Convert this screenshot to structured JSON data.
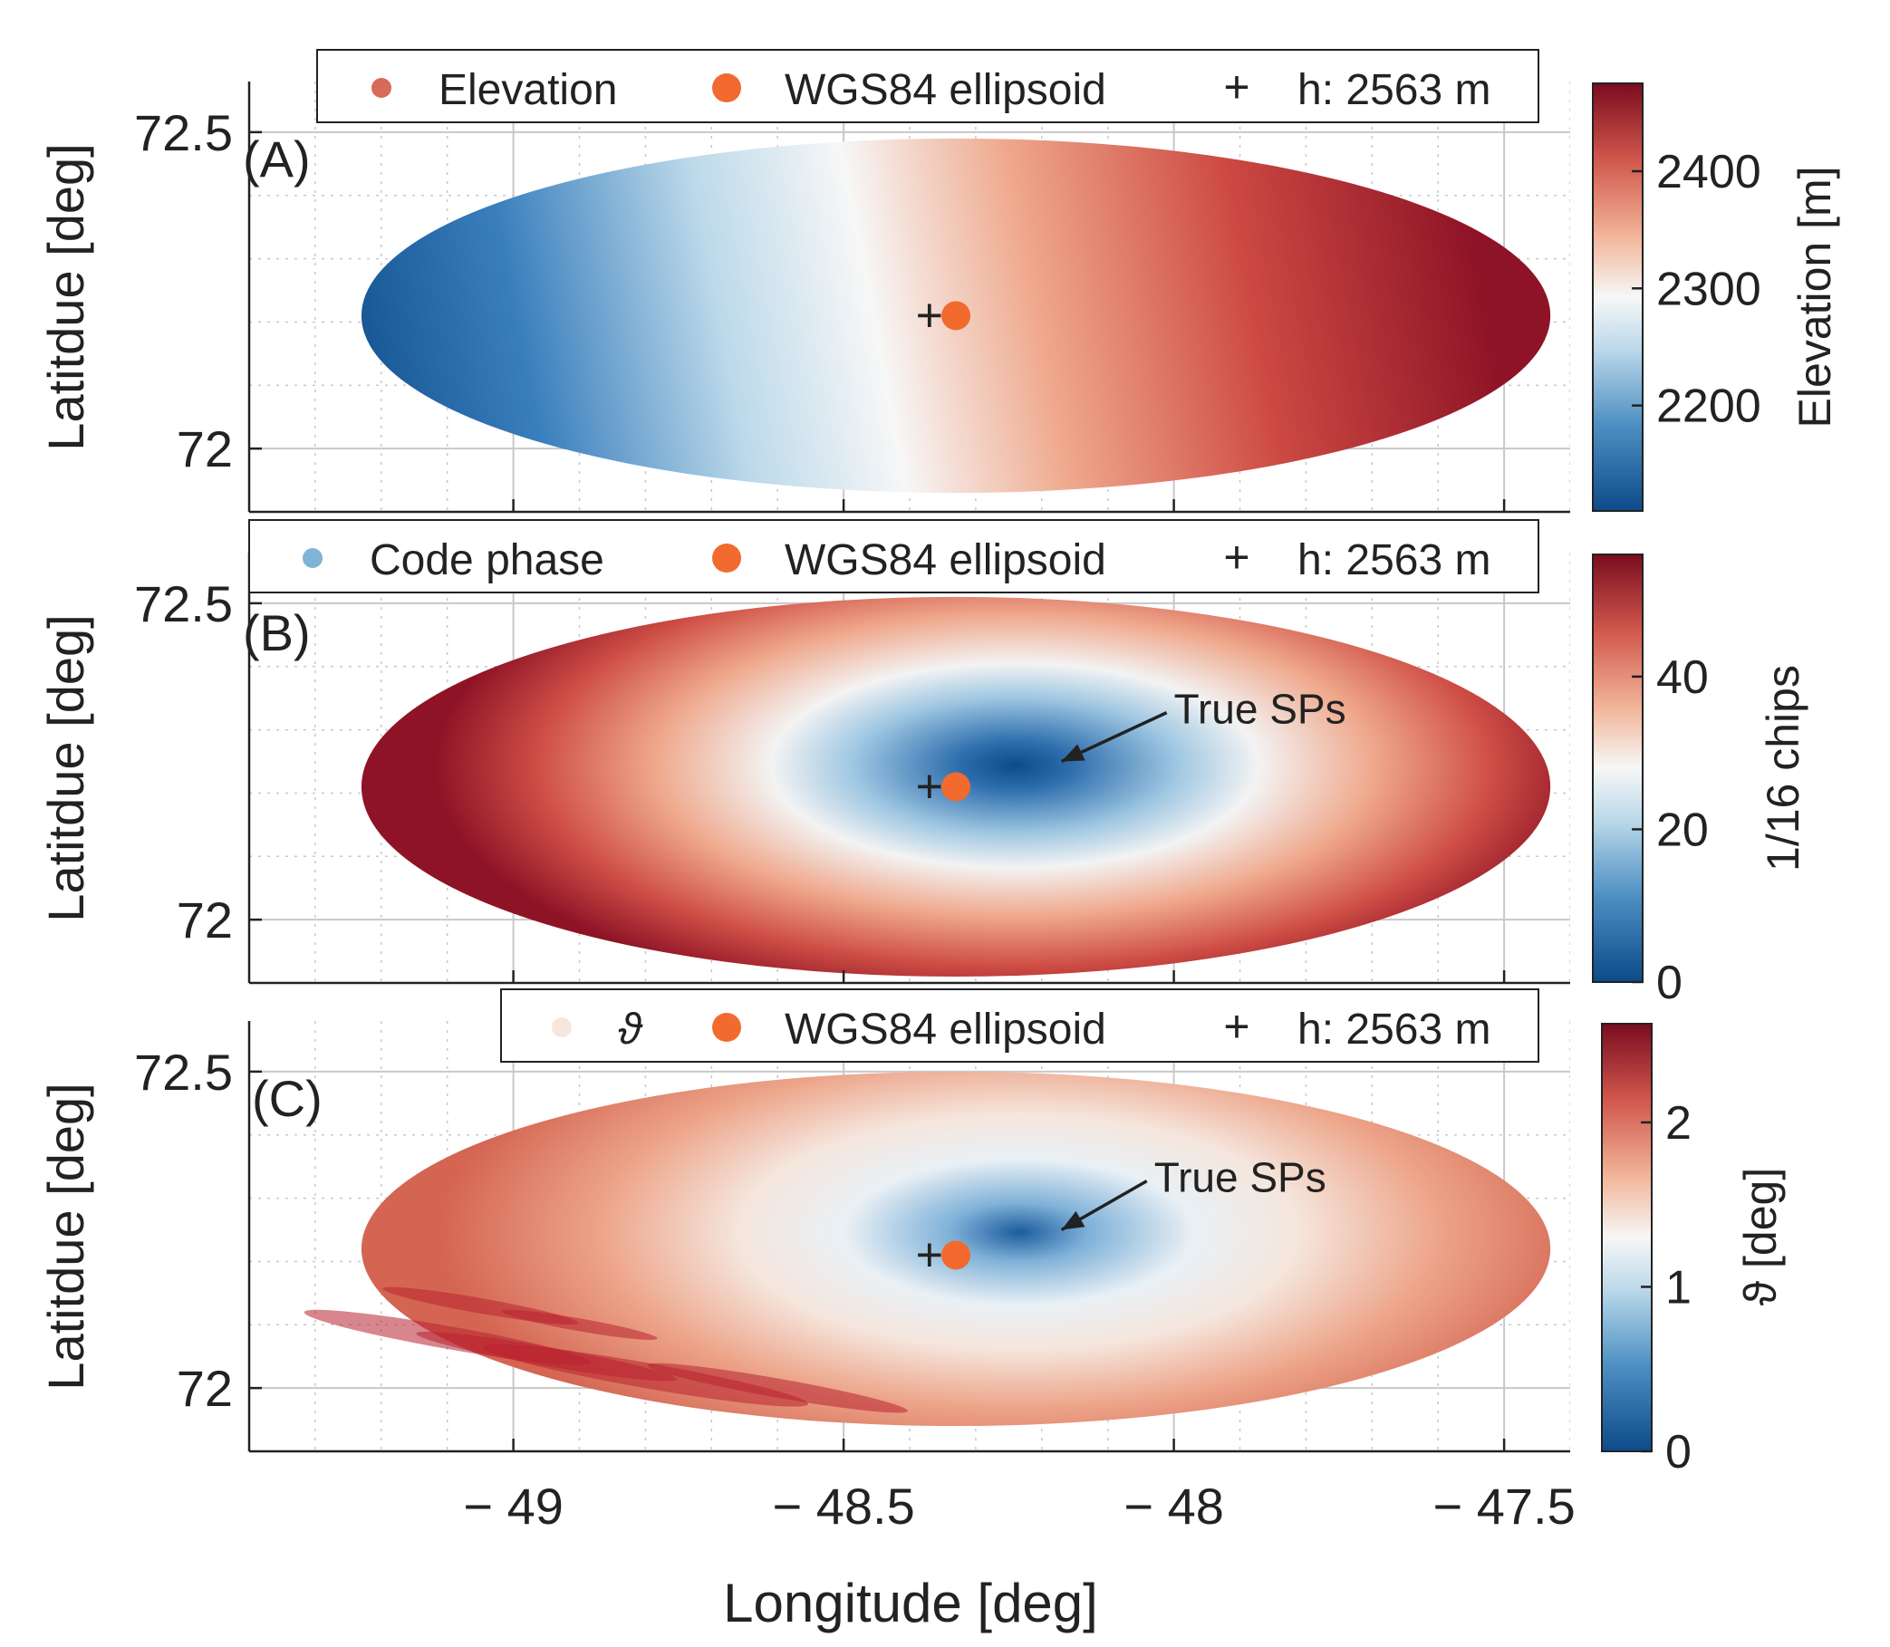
{
  "figure": {
    "xlabel": "Longitude [deg]",
    "ylabel": "Latitdue [deg]",
    "x_ticks": [
      -49,
      -48.5,
      -48,
      -47.5
    ],
    "x_tick_labels": [
      "− 49",
      "− 48.5",
      "− 48",
      "− 47.5"
    ],
    "xlim": [
      -49.4,
      -47.4
    ],
    "y_ticks": [
      72,
      72.5
    ],
    "y_tick_labels": [
      "72",
      "72.5"
    ],
    "ylim": [
      71.9,
      72.58
    ],
    "grid": true,
    "minor_grid": true,
    "colormap": "blue-white-red (diverging)",
    "colors": {
      "deep_blue": "#0d4a8a",
      "blue": "#4d8fc2",
      "light_blue": "#bcd9ea",
      "white": "#f7f7f7",
      "light_red": "#f2b69a",
      "red": "#d1584d",
      "deep_red": "#7a0c1f",
      "marker_orange": "#f26a2e",
      "axis": "#222222",
      "grid": "#c8c8c8"
    }
  },
  "chart_data": [
    {
      "type": "scatter",
      "panel_label": "(A)",
      "title": "",
      "xlabel": "",
      "ylabel": "Latitdue [deg]",
      "legend": [
        "Elevation",
        "WGS84 ellipsoid",
        "h: 2563 m"
      ],
      "legend_marker_color": "#d86a5a",
      "legend_position": "top",
      "colorbar": {
        "label": "Elevation [m]",
        "ticks": [
          2200,
          2300,
          2400
        ],
        "range": [
          2110,
          2475
        ]
      },
      "ellipse": {
        "center_lon": -48.33,
        "center_lat": 72.21,
        "half_width_lon": 0.9,
        "half_height_lat": 0.28
      },
      "field": {
        "kind": "gradient",
        "low_point": [
          -49.05,
          72.02
        ],
        "high_point": [
          -47.6,
          72.38
        ]
      },
      "annotation": null,
      "ellipsoid_point": {
        "lon": -48.33,
        "lat": 72.21
      },
      "height_point": {
        "lon": -48.37,
        "lat": 72.21
      }
    },
    {
      "type": "scatter",
      "panel_label": "(B)",
      "title": "",
      "xlabel": "",
      "ylabel": "Latitdue [deg]",
      "legend": [
        "Code phase",
        "WGS84 ellipsoid",
        "h: 2563 m"
      ],
      "legend_marker_color": "#7fb4d6",
      "legend_position": "top",
      "colorbar": {
        "label": "1/16 chips",
        "ticks": [
          0,
          20,
          40
        ],
        "range": [
          0,
          56
        ]
      },
      "ellipse": {
        "center_lon": -48.33,
        "center_lat": 72.21,
        "half_width_lon": 0.9,
        "half_height_lat": 0.3
      },
      "field": {
        "kind": "bowl",
        "min_point": [
          -48.22,
          72.23
        ],
        "min_value": 0,
        "max_value": 56
      },
      "annotation": {
        "text": "True SPs",
        "text_lon": -48.0,
        "text_lat": 72.31,
        "arrow_to": [
          -48.17,
          72.25
        ]
      },
      "ellipsoid_point": {
        "lon": -48.33,
        "lat": 72.21
      },
      "height_point": {
        "lon": -48.37,
        "lat": 72.21
      }
    },
    {
      "type": "scatter",
      "panel_label": "(C)",
      "title": "",
      "xlabel": "Longitude [deg]",
      "ylabel": "Latitdue [deg]",
      "legend": [
        "ϑ",
        "WGS84 ellipsoid",
        "h: 2563 m"
      ],
      "legend_marker_color": "#f7e6dc",
      "legend_position": "top",
      "colorbar": {
        "label": "ϑ [deg]",
        "ticks": [
          0,
          1,
          2
        ],
        "range": [
          0,
          2.6
        ]
      },
      "ellipse": {
        "center_lon": -48.33,
        "center_lat": 72.22,
        "half_width_lon": 0.9,
        "half_height_lat": 0.28
      },
      "field": {
        "kind": "bowl-streaked",
        "min_point": [
          -48.2,
          72.24
        ],
        "min_value": 0,
        "max_value": 2.6
      },
      "annotation": {
        "text": "True SPs",
        "text_lon": -48.03,
        "text_lat": 72.31,
        "arrow_to": [
          -48.17,
          72.25
        ]
      },
      "ellipsoid_point": {
        "lon": -48.33,
        "lat": 72.21
      },
      "height_point": {
        "lon": -48.37,
        "lat": 72.21
      }
    }
  ]
}
